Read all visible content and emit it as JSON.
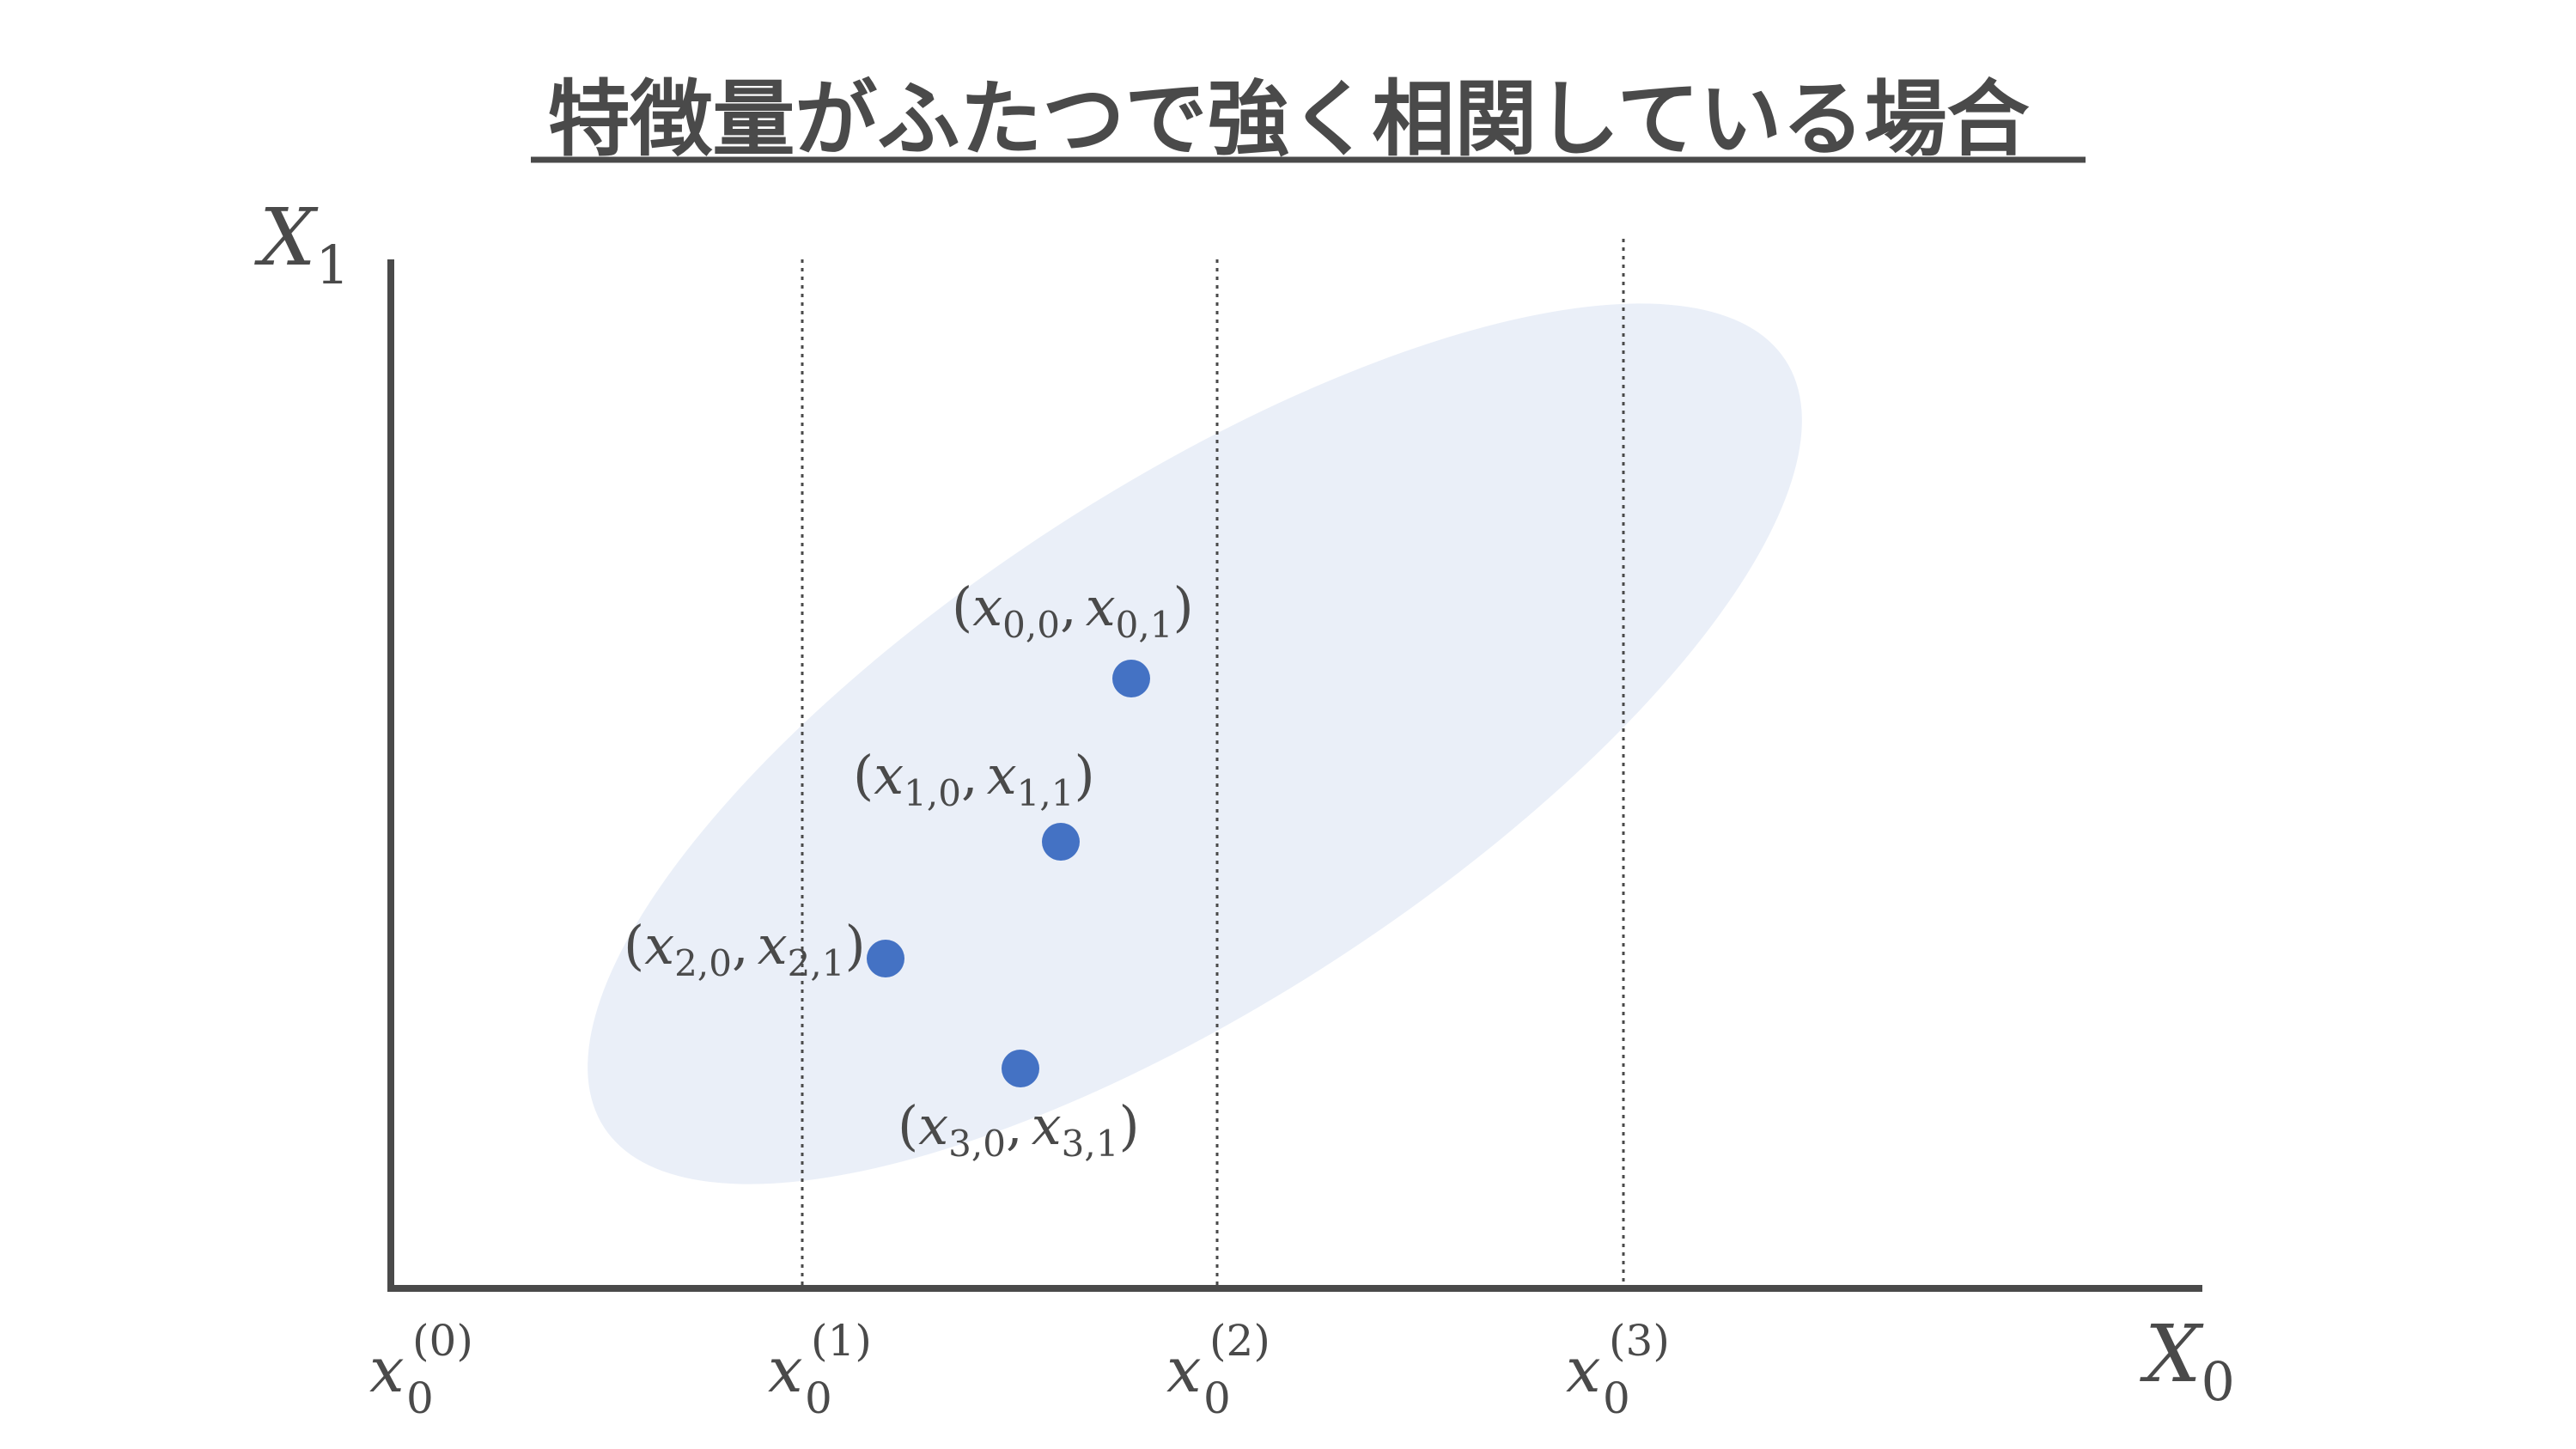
{
  "title": "特徴量がふたつで強く相関している場合",
  "axes": {
    "y": {
      "symbol": "X",
      "subscript": "1"
    },
    "x": {
      "symbol": "X",
      "subscript": "0"
    }
  },
  "ticks": [
    {
      "symbol": "x",
      "subscript": "0",
      "superscript": "(0)"
    },
    {
      "symbol": "x",
      "subscript": "0",
      "superscript": "(1)"
    },
    {
      "symbol": "x",
      "subscript": "0",
      "superscript": "(2)"
    },
    {
      "symbol": "x",
      "subscript": "0",
      "superscript": "(3)"
    }
  ],
  "points": [
    {
      "open": "(",
      "v1": "x",
      "s1": "0,0",
      "sep": ",",
      "v2": "x",
      "s2": "0,1",
      "close": ")"
    },
    {
      "open": "(",
      "v1": "x",
      "s1": "1,0",
      "sep": ",",
      "v2": "x",
      "s2": "1,1",
      "close": ")"
    },
    {
      "open": "(",
      "v1": "x",
      "s1": "2,0",
      "sep": ",",
      "v2": "x",
      "s2": "2,1",
      "close": ")"
    },
    {
      "open": "(",
      "v1": "x",
      "s1": "3,0",
      "sep": ",",
      "v2": "x",
      "s2": "3,1",
      "close": ")"
    }
  ],
  "colors": {
    "text": "#4a4a4a",
    "axis": "#4a4a4a",
    "point": "#4472c4",
    "ellipse": "#eaeff8",
    "gridline": "#4a4a4a"
  }
}
